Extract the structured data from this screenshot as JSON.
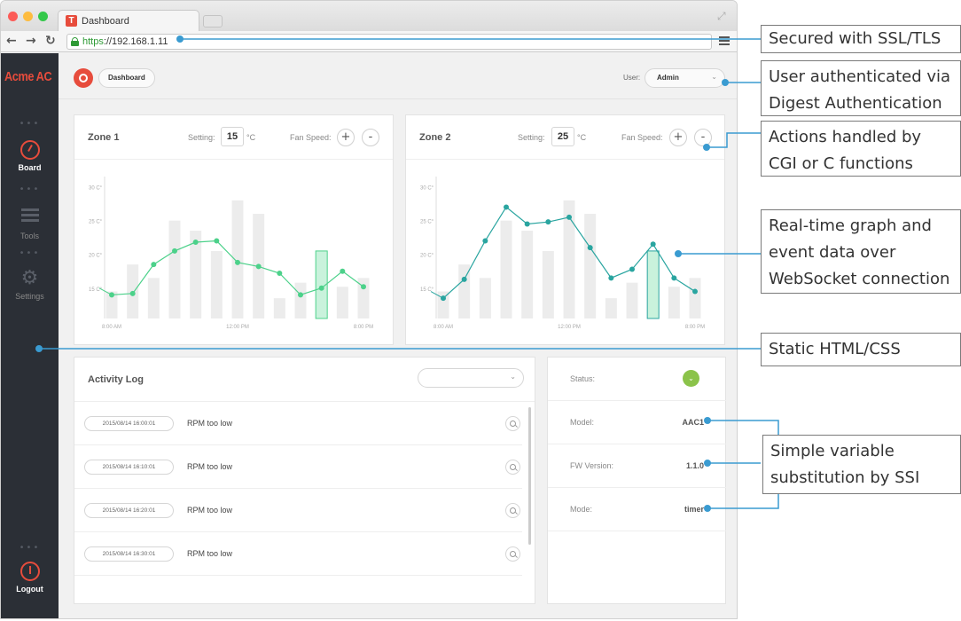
{
  "browser": {
    "tab_title": "Dashboard",
    "tab_icon_letter": "T",
    "url_scheme": "https",
    "url_rest": "://192.168.1.11",
    "colors": {
      "secure": "#2e9a35",
      "accent": "#e74c3c"
    }
  },
  "sidebar": {
    "brand": "Acme AC",
    "items": [
      {
        "label": "Board",
        "icon": "gauge-icon",
        "active": true
      },
      {
        "label": "Tools",
        "icon": "tools-icon"
      },
      {
        "label": "Settings",
        "icon": "gear-icon"
      }
    ],
    "logout_label": "Logout"
  },
  "header": {
    "breadcrumb": "Dashboard",
    "user_label": "User:",
    "user_value": "Admin"
  },
  "zones": [
    {
      "title": "Zone 1",
      "setting_label": "Setting:",
      "setting_value": "15",
      "unit": "°C",
      "fan_label": "Fan Speed:",
      "plus": "+",
      "minus": "-"
    },
    {
      "title": "Zone 2",
      "setting_label": "Setting:",
      "setting_value": "25",
      "unit": "°C",
      "fan_label": "Fan Speed:",
      "plus": "+",
      "minus": "-"
    }
  ],
  "chart_data": [
    {
      "type": "line",
      "y_ticks": [
        "30 C°",
        "25 C°",
        "20 C°",
        "15 C°"
      ],
      "y_tick_values": [
        30,
        25,
        20,
        15
      ],
      "x_ticks": [
        "8:00 AM",
        "12:00 PM",
        "8:00 PM"
      ],
      "ylim": [
        10.5,
        31
      ],
      "line": [
        14,
        14.2,
        18.5,
        20.5,
        21.8,
        22,
        18.8,
        18.2,
        17.2,
        14,
        15,
        17.5,
        15.2
      ],
      "bars": [
        14.5,
        18.5,
        16.5,
        25,
        23.5,
        20.5,
        28,
        26,
        13.5,
        15.8,
        20.5,
        15.2,
        16.5
      ],
      "highlight_bar": 10,
      "colors": {
        "line": "#4cd18a",
        "highlight": "#c9f2dc",
        "bar": "#ececec"
      }
    },
    {
      "type": "line",
      "y_ticks": [
        "30 C°",
        "25 C°",
        "20 C°",
        "15 C°"
      ],
      "y_tick_values": [
        30,
        25,
        20,
        15
      ],
      "x_ticks": [
        "8:00 AM",
        "12:00 PM",
        "8:00 PM"
      ],
      "ylim": [
        10.5,
        31
      ],
      "line": [
        13.5,
        16.3,
        22,
        27,
        24.5,
        24.8,
        25.5,
        21,
        16.5,
        17.8,
        21.5,
        16.5,
        14.5
      ],
      "bars": [
        14.5,
        18.5,
        16.5,
        25,
        23.5,
        20.5,
        28,
        26,
        13.5,
        15.8,
        20.5,
        15.2,
        16.5
      ],
      "highlight_bar": 10,
      "colors": {
        "line": "#2aa5a0",
        "highlight": "#c9f2dc",
        "bar": "#ececec"
      }
    }
  ],
  "activity_log": {
    "title": "Activity Log",
    "rows": [
      {
        "timestamp": "2015/08/14 16:00:01",
        "message": "RPM too low"
      },
      {
        "timestamp": "2015/08/14 16:10:01",
        "message": "RPM too low"
      },
      {
        "timestamp": "2015/08/14 16:20:01",
        "message": "RPM too low"
      },
      {
        "timestamp": "2015/08/14 16:30:01",
        "message": "RPM too low"
      }
    ]
  },
  "status_panel": {
    "rows": [
      {
        "label": "Status:",
        "value": "",
        "indicator": "ok"
      },
      {
        "label": "Model:",
        "value": "AAC1"
      },
      {
        "label": "FW Version:",
        "value": "1.1.0"
      },
      {
        "label": "Mode:",
        "value": "timer"
      }
    ],
    "status_color": "#8bc34a"
  },
  "annotations": {
    "ssl": "Secured with SSL/TLS",
    "auth_1": "User authenticated via",
    "auth_2": "Digest Authentication",
    "actions_1": "Actions handled by",
    "actions_2": "CGI or C functions",
    "realtime_1": "Real-time graph and",
    "realtime_2": "event data over",
    "realtime_3": "WebSocket connection",
    "static": "Static HTML/CSS",
    "ssi_1": "Simple variable",
    "ssi_2": "substitution by SSI",
    "line_color": "#3a9bd1"
  }
}
